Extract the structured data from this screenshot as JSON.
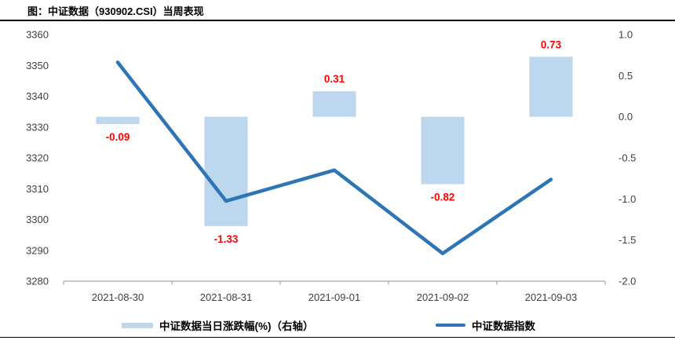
{
  "title": "图：中证数据（930902.CSI）当周表现",
  "chart_data": {
    "type": "bar+line",
    "title": "图：中证数据（930902.CSI）当周表现",
    "categories": [
      "2021-08-30",
      "2021-08-31",
      "2021-09-01",
      "2021-09-02",
      "2021-09-03"
    ],
    "series": [
      {
        "name": "中证数据当日涨跌幅(%)（右轴）",
        "type": "bar",
        "axis": "right",
        "color": "#BDD7EE",
        "values": [
          -0.09,
          -1.33,
          0.31,
          -0.82,
          0.73
        ],
        "labels": [
          "-0.09",
          "-1.33",
          "0.31",
          "-0.82",
          "0.73"
        ],
        "label_color": "#FF0000"
      },
      {
        "name": "中证数据指数",
        "type": "line",
        "axis": "left",
        "color": "#2E75B6",
        "values": [
          3351,
          3306,
          3316,
          3289,
          3313
        ]
      }
    ],
    "left_axis": {
      "min": 3280,
      "max": 3360,
      "step": 10,
      "ticks": [
        "3360",
        "3350",
        "3340",
        "3330",
        "3320",
        "3310",
        "3300",
        "3290",
        "3280"
      ]
    },
    "right_axis": {
      "min": -2.0,
      "max": 1.0,
      "step": 0.5,
      "ticks": [
        "1.0",
        "0.5",
        "0.0",
        "-0.5",
        "-1.0",
        "-1.5",
        "-2.0"
      ]
    },
    "grid": false,
    "legend_position": "bottom",
    "axis_line_color": "#A6A6A6",
    "axis_text_color": "#404040"
  }
}
